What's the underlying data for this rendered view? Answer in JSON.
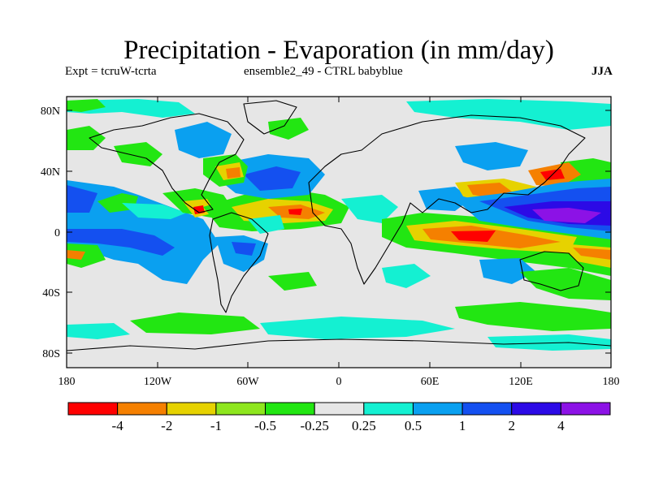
{
  "title": "Precipitation - Evaporation (in mm/day)",
  "subtitle_left": "Expt = tcruW-tcrta",
  "subtitle_center": "ensemble2_49 - CTRL babyblue",
  "season": "JJA",
  "lat_ticks": [
    "80N",
    "40N",
    "0",
    "40S",
    "80S"
  ],
  "lon_ticks": [
    "180",
    "120W",
    "60W",
    "0",
    "60E",
    "120E",
    "180"
  ],
  "colorbar": {
    "colors": [
      "#ff0000",
      "#f58000",
      "#e6d200",
      "#8ee61e",
      "#22e612",
      "#e6e6e6",
      "#14f0d2",
      "#0aa0f0",
      "#1450f0",
      "#2c0ae6",
      "#8c12e6"
    ],
    "labels": [
      "-4",
      "-2",
      "-1",
      "-0.5",
      "-0.25",
      "0.25",
      "0.5",
      "1",
      "2",
      "4"
    ]
  },
  "palette": {
    "red": "#ff0000",
    "orange": "#f58000",
    "yellow": "#e6d200",
    "lime": "#8ee61e",
    "green": "#22e612",
    "neutral": "#e6e6e6",
    "cyan": "#14f0d2",
    "lightblue": "#0aa0f0",
    "blue": "#1450f0",
    "darkblue": "#2c0ae6",
    "purple": "#8c12e6"
  }
}
